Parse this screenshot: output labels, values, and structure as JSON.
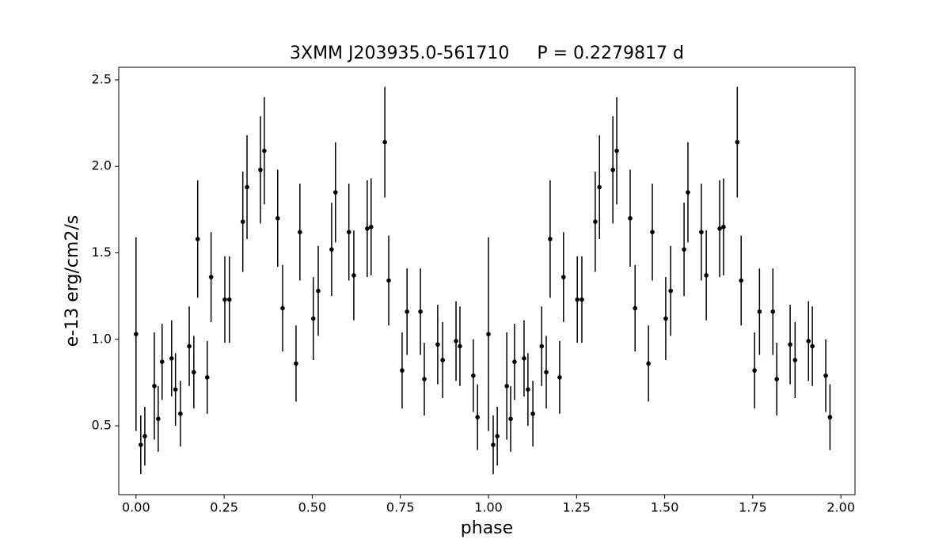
{
  "chart_data": {
    "type": "scatter",
    "title": "3XMM J203935.0-561710     P = 0.2279817 d",
    "xlabel": "phase",
    "ylabel": "e-13 erg/cm2/s",
    "color": "#000000",
    "x": [
      0.0,
      0.0135,
      0.025,
      0.052,
      0.063,
      0.074,
      0.101,
      0.112,
      0.126,
      0.151,
      0.164,
      0.175,
      0.202,
      0.213,
      0.252,
      0.265,
      0.303,
      0.315,
      0.353,
      0.364,
      0.402,
      0.416,
      0.454,
      0.465,
      0.503,
      0.517,
      0.555,
      0.566,
      0.604,
      0.618,
      0.656,
      0.667,
      0.706,
      0.717,
      0.755,
      0.769,
      0.807,
      0.818,
      0.856,
      0.87,
      0.908,
      0.919,
      0.957,
      0.969,
      1.0,
      1.0135,
      1.025,
      1.052,
      1.063,
      1.074,
      1.101,
      1.112,
      1.126,
      1.151,
      1.164,
      1.175,
      1.202,
      1.213,
      1.252,
      1.265,
      1.303,
      1.315,
      1.353,
      1.364,
      1.402,
      1.416,
      1.454,
      1.465,
      1.503,
      1.517,
      1.555,
      1.566,
      1.604,
      1.618,
      1.656,
      1.667,
      1.706,
      1.717,
      1.755,
      1.769,
      1.807,
      1.818,
      1.856,
      1.87,
      1.908,
      1.919,
      1.957,
      1.969
    ],
    "values": [
      1.03,
      0.39,
      0.44,
      0.73,
      0.54,
      0.87,
      0.89,
      0.71,
      0.57,
      0.96,
      0.81,
      1.58,
      0.78,
      1.36,
      1.23,
      1.23,
      1.68,
      1.88,
      1.98,
      2.09,
      1.7,
      1.18,
      0.86,
      1.62,
      1.12,
      1.28,
      1.52,
      1.85,
      1.62,
      1.37,
      1.64,
      1.65,
      2.14,
      1.34,
      0.82,
      1.16,
      1.16,
      0.77,
      0.97,
      0.88,
      0.99,
      0.96,
      0.79,
      0.55,
      1.03,
      0.39,
      0.44,
      0.73,
      0.54,
      0.87,
      0.89,
      0.71,
      0.57,
      0.96,
      0.81,
      1.58,
      0.78,
      1.36,
      1.23,
      1.23,
      1.68,
      1.88,
      1.98,
      2.09,
      1.7,
      1.18,
      0.86,
      1.62,
      1.12,
      1.28,
      1.52,
      1.85,
      1.62,
      1.37,
      1.64,
      1.65,
      2.14,
      1.34,
      0.82,
      1.16,
      1.16,
      0.77,
      0.97,
      0.88,
      0.99,
      0.96,
      0.79,
      0.55
    ],
    "errors": [
      0.56,
      0.17,
      0.17,
      0.31,
      0.19,
      0.22,
      0.22,
      0.21,
      0.19,
      0.23,
      0.21,
      0.34,
      0.21,
      0.26,
      0.25,
      0.25,
      0.29,
      0.3,
      0.31,
      0.31,
      0.28,
      0.25,
      0.22,
      0.28,
      0.24,
      0.26,
      0.27,
      0.29,
      0.28,
      0.26,
      0.28,
      0.28,
      0.32,
      0.26,
      0.22,
      0.25,
      0.25,
      0.21,
      0.23,
      0.22,
      0.23,
      0.23,
      0.21,
      0.19,
      0.56,
      0.17,
      0.17,
      0.31,
      0.19,
      0.22,
      0.22,
      0.21,
      0.19,
      0.23,
      0.21,
      0.34,
      0.21,
      0.26,
      0.25,
      0.25,
      0.29,
      0.3,
      0.31,
      0.31,
      0.28,
      0.25,
      0.22,
      0.28,
      0.24,
      0.26,
      0.27,
      0.29,
      0.28,
      0.26,
      0.28,
      0.28,
      0.32,
      0.26,
      0.22,
      0.25,
      0.25,
      0.21,
      0.23,
      0.22,
      0.23,
      0.23,
      0.21,
      0.19
    ],
    "xlim": [
      -0.049,
      2.04
    ],
    "ylim": [
      0.102,
      2.573
    ],
    "xticks": [
      {
        "value": 0,
        "label": "0.00"
      },
      {
        "value": 0.25,
        "label": "0.25"
      },
      {
        "value": 0.5,
        "label": "0.50"
      },
      {
        "value": 0.75,
        "label": "0.75"
      },
      {
        "value": 1,
        "label": "1.00"
      },
      {
        "value": 1.25,
        "label": "1.25"
      },
      {
        "value": 1.5,
        "label": "1.50"
      },
      {
        "value": 1.75,
        "label": "1.75"
      },
      {
        "value": 2,
        "label": "2.00"
      }
    ],
    "yticks": [
      0.5,
      {
        "value": 1,
        "label": "1.0"
      },
      1.5,
      {
        "value": 2,
        "label": "2.0"
      },
      2.5
    ]
  }
}
